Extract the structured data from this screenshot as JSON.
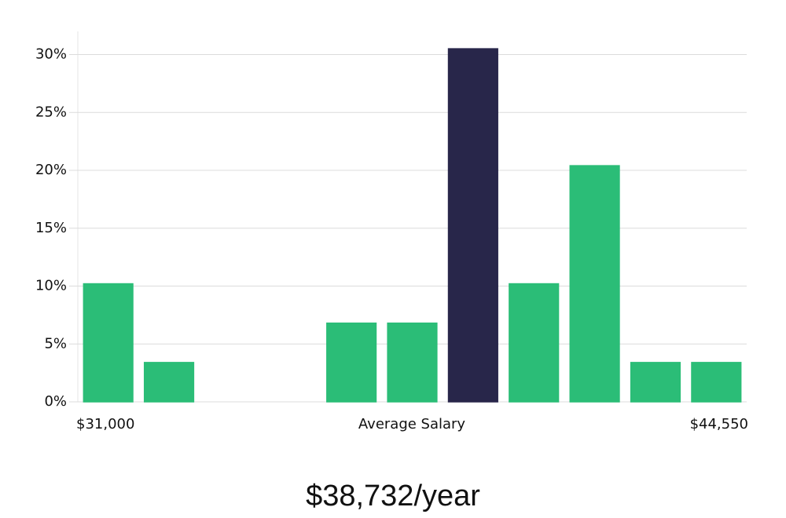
{
  "chart_data": {
    "type": "bar",
    "categories": [
      null,
      null,
      null,
      null,
      null,
      null,
      null,
      null,
      null,
      null,
      null
    ],
    "values": [
      10.2,
      3.4,
      0,
      0,
      6.8,
      6.8,
      30.5,
      10.2,
      20.4,
      3.4,
      3.4
    ],
    "colors": [
      "#2bbd77",
      "#2bbd77",
      "#2bbd77",
      "#2bbd77",
      "#2bbd77",
      "#2bbd77",
      "#28264a",
      "#2bbd77",
      "#2bbd77",
      "#2bbd77",
      "#2bbd77"
    ],
    "ylim": [
      0,
      32
    ],
    "yticks": [
      {
        "value": 0,
        "label": "0%"
      },
      {
        "value": 5,
        "label": "5%"
      },
      {
        "value": 10,
        "label": "10%"
      },
      {
        "value": 15,
        "label": "15%"
      },
      {
        "value": 20,
        "label": "20%"
      },
      {
        "value": 25,
        "label": "25%"
      },
      {
        "value": 30,
        "label": "30%"
      }
    ],
    "grid": true,
    "x_start_label": "$31,000",
    "x_label": "Average Salary",
    "x_end_label": "$44,550",
    "footer": "$38,732/year"
  }
}
